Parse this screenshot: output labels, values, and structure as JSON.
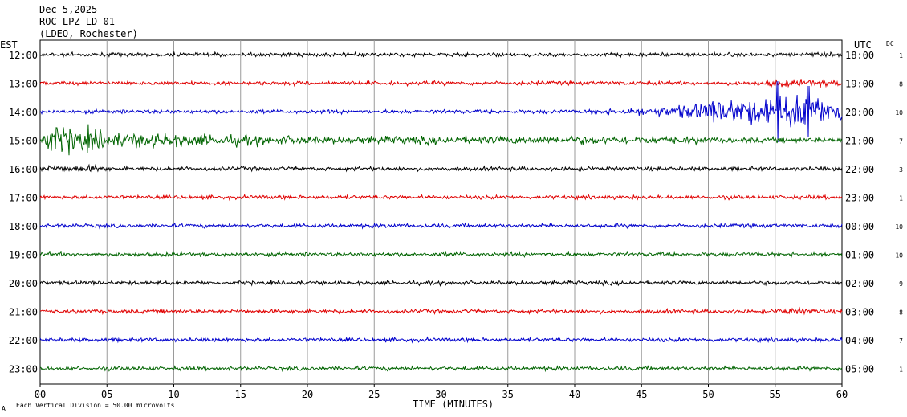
{
  "header": {
    "date": "Dec 5,2025",
    "station": "ROC LPZ LD 01",
    "network": "(LDEO, Rochester)"
  },
  "axis_labels": {
    "left_timezone": "EST",
    "right_timezone": "UTC",
    "dc_header": "DC"
  },
  "footer": {
    "scale_note": "Each Vertical Division =   50.00 microvolts",
    "corner_mark": "A"
  },
  "chart_data": {
    "type": "line",
    "xlabel": "TIME (MINUTES)",
    "xlim": [
      0,
      60
    ],
    "x_ticks": [
      "00",
      "05",
      "10",
      "15",
      "20",
      "25",
      "30",
      "35",
      "40",
      "45",
      "50",
      "55",
      "60"
    ],
    "colors": [
      "#000000",
      "#e00000",
      "#0000cc",
      "#006400"
    ],
    "grid": true,
    "series": [
      {
        "left": "12:00",
        "right": "18:00",
        "dc": "1",
        "color": "#000000"
      },
      {
        "left": "13:00",
        "right": "19:00",
        "dc": "8",
        "color": "#e00000"
      },
      {
        "left": "14:00",
        "right": "20:00",
        "dc": "10",
        "color": "#0000cc"
      },
      {
        "left": "15:00",
        "right": "21:00",
        "dc": "7",
        "color": "#006400"
      },
      {
        "left": "16:00",
        "right": "22:00",
        "dc": "3",
        "color": "#000000"
      },
      {
        "left": "17:00",
        "right": "23:00",
        "dc": "1",
        "color": "#e00000"
      },
      {
        "left": "18:00",
        "right": "00:00",
        "dc": "10",
        "color": "#0000cc"
      },
      {
        "left": "19:00",
        "right": "01:00",
        "dc": "10",
        "color": "#006400"
      },
      {
        "left": "20:00",
        "right": "02:00",
        "dc": "9",
        "color": "#000000"
      },
      {
        "left": "21:00",
        "right": "03:00",
        "dc": "8",
        "color": "#e00000"
      },
      {
        "left": "22:00",
        "right": "04:00",
        "dc": "7",
        "color": "#0000cc"
      },
      {
        "left": "23:00",
        "right": "05:00",
        "dc": "1",
        "color": "#006400"
      }
    ]
  }
}
